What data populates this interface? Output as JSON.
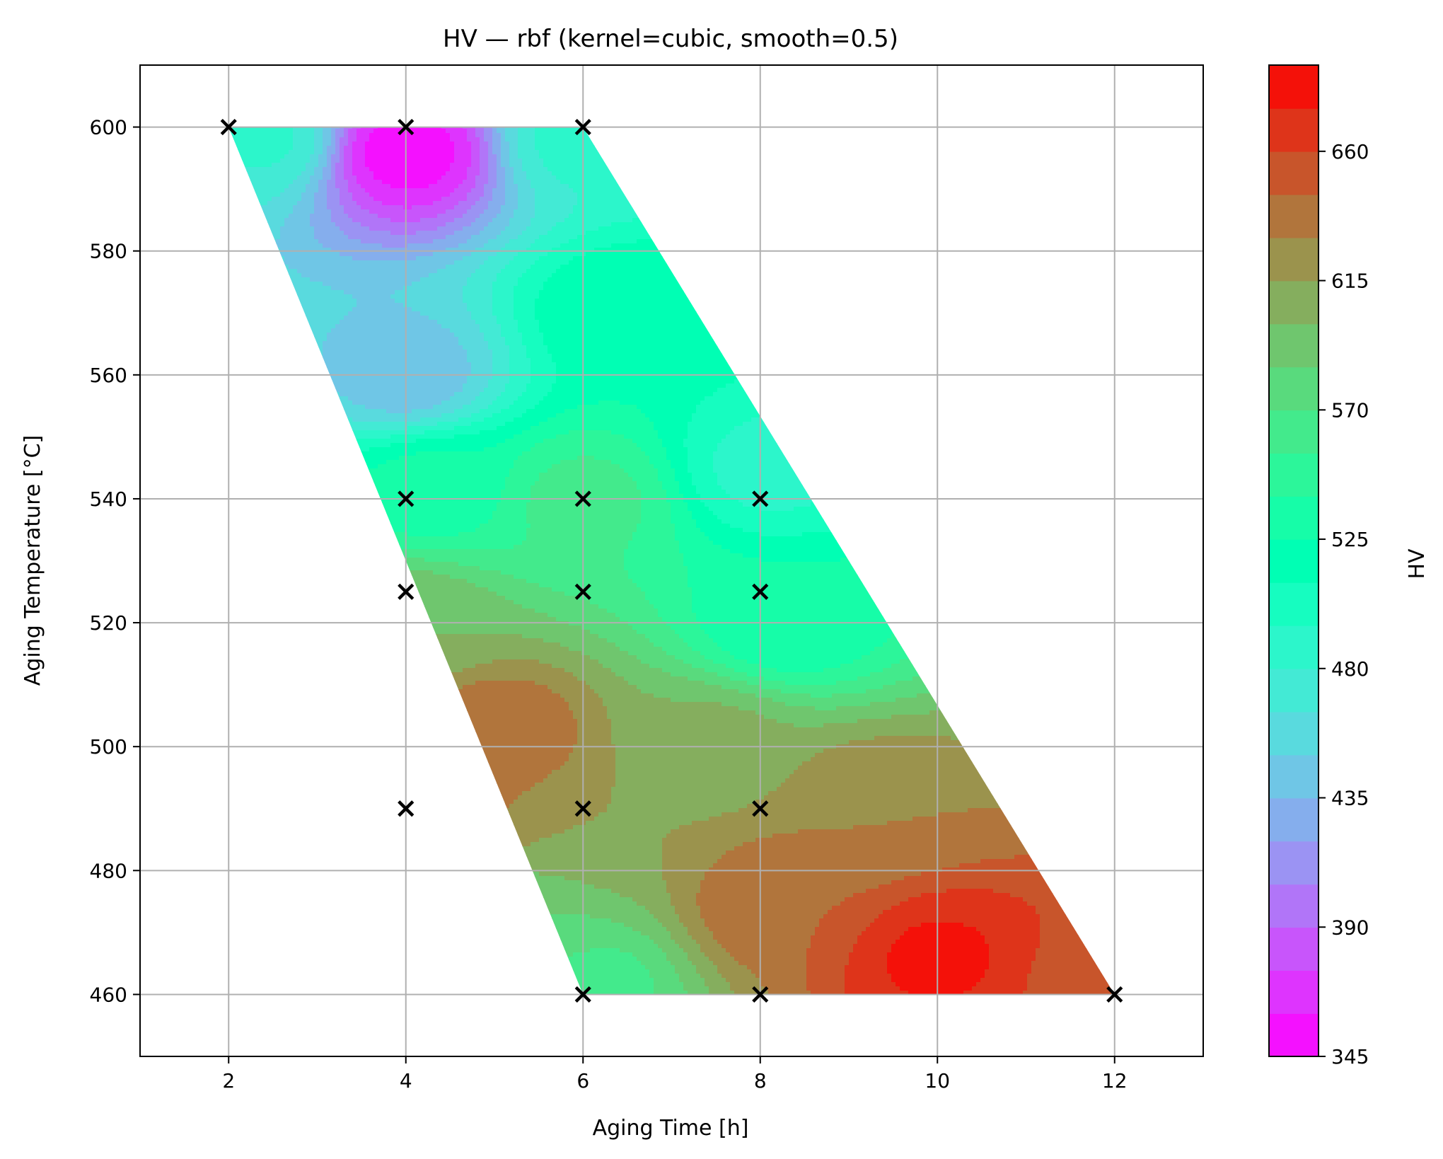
{
  "chart_data": {
    "type": "heatmap",
    "subtype": "filled-contour",
    "title": "HV — rbf (kernel=cubic, smooth=0.5)",
    "xlabel": "Aging Time [h]",
    "ylabel": "Aging Temperature [°C]",
    "xlim": [
      1,
      13
    ],
    "ylim": [
      450,
      610
    ],
    "x_ticks": [
      2,
      4,
      6,
      8,
      10,
      12
    ],
    "y_ticks": [
      460,
      480,
      500,
      520,
      540,
      560,
      580,
      600
    ],
    "x_tick_labels": [
      "2",
      "4",
      "6",
      "8",
      "10",
      "12"
    ],
    "y_tick_labels": [
      "460",
      "480",
      "500",
      "520",
      "540",
      "560",
      "580",
      "600"
    ],
    "grid": true,
    "colormap": "rainbow",
    "colorbar": {
      "label": "HV",
      "min": 345,
      "max": 690,
      "levels": 23,
      "ticks": [
        345,
        390,
        435,
        480,
        525,
        570,
        615,
        660
      ],
      "tick_labels": [
        "345",
        "390",
        "435",
        "480",
        "525",
        "570",
        "615",
        "660"
      ]
    },
    "domain_polygon": [
      [
        2,
        600
      ],
      [
        6,
        600
      ],
      [
        12,
        460
      ],
      [
        6,
        460
      ]
    ],
    "samples": [
      {
        "x": 2,
        "y": 600
      },
      {
        "x": 4,
        "y": 600
      },
      {
        "x": 6,
        "y": 600
      },
      {
        "x": 4,
        "y": 540
      },
      {
        "x": 6,
        "y": 540
      },
      {
        "x": 8,
        "y": 540
      },
      {
        "x": 4,
        "y": 525
      },
      {
        "x": 6,
        "y": 525
      },
      {
        "x": 8,
        "y": 525
      },
      {
        "x": 4,
        "y": 490
      },
      {
        "x": 6,
        "y": 490
      },
      {
        "x": 8,
        "y": 490
      },
      {
        "x": 6,
        "y": 460
      },
      {
        "x": 8,
        "y": 460
      },
      {
        "x": 12,
        "y": 460
      }
    ],
    "surface_features": [
      {
        "x": 4.0,
        "y": 596,
        "value": 352
      },
      {
        "x": 2.4,
        "y": 598,
        "value": 482
      },
      {
        "x": 6.0,
        "y": 598,
        "value": 485
      },
      {
        "x": 4.0,
        "y": 560,
        "value": 440
      },
      {
        "x": 6.5,
        "y": 570,
        "value": 525
      },
      {
        "x": 8.1,
        "y": 545,
        "value": 490
      },
      {
        "x": 4.3,
        "y": 542,
        "value": 530
      },
      {
        "x": 6.0,
        "y": 540,
        "value": 560
      },
      {
        "x": 8.3,
        "y": 520,
        "value": 525
      },
      {
        "x": 4.0,
        "y": 520,
        "value": 600
      },
      {
        "x": 5.0,
        "y": 502,
        "value": 645
      },
      {
        "x": 7.5,
        "y": 500,
        "value": 605
      },
      {
        "x": 4.2,
        "y": 490,
        "value": 640
      },
      {
        "x": 6.3,
        "y": 487,
        "value": 615
      },
      {
        "x": 5.5,
        "y": 470,
        "value": 585
      },
      {
        "x": 6.0,
        "y": 462,
        "value": 560
      },
      {
        "x": 8.2,
        "y": 475,
        "value": 645
      },
      {
        "x": 10.0,
        "y": 466,
        "value": 678
      },
      {
        "x": 9.2,
        "y": 490,
        "value": 630
      },
      {
        "x": 11.8,
        "y": 462,
        "value": 655
      }
    ]
  }
}
